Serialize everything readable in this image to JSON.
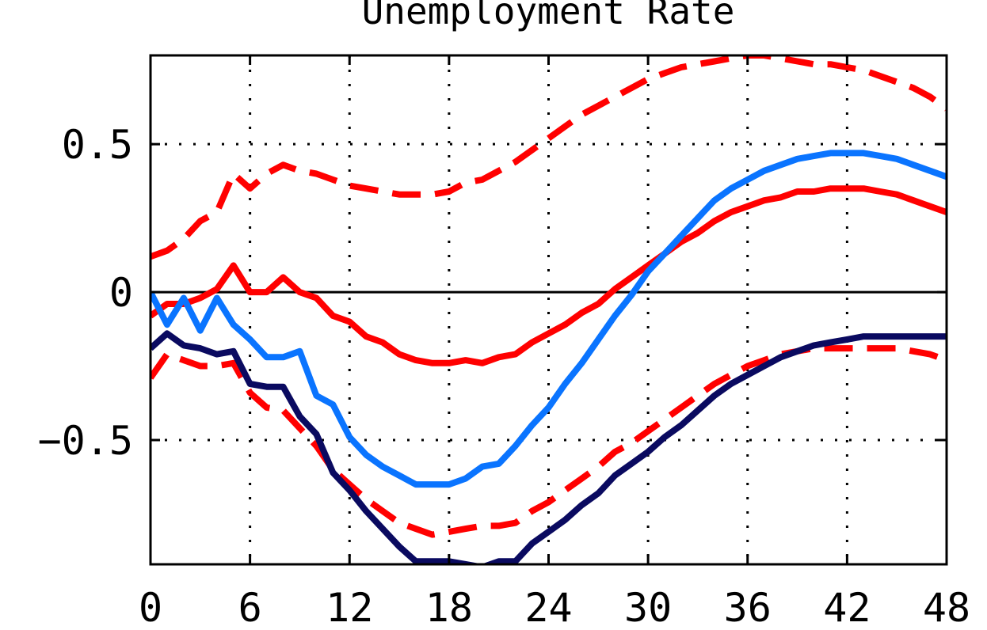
{
  "chart_data": {
    "type": "line",
    "title": "Unemployment Rate",
    "xlabel": "",
    "ylabel": "",
    "xlim": [
      0,
      48
    ],
    "ylim": [
      -0.92,
      0.8
    ],
    "x_ticks": [
      0,
      6,
      12,
      18,
      24,
      30,
      36,
      42,
      48
    ],
    "x_tick_labels": [
      "0",
      "6",
      "12",
      "18",
      "24",
      "30",
      "36",
      "42",
      "48"
    ],
    "y_ticks": [
      -0.5,
      0,
      0.5
    ],
    "y_tick_labels": [
      "−0.5",
      "0",
      "0.5"
    ],
    "grid": true,
    "zero_line": true,
    "colors": {
      "red": "#ff0000",
      "light_blue": "#0a74ff",
      "navy": "#0a0a60",
      "axes": "#000000"
    },
    "x": [
      0,
      1,
      2,
      3,
      4,
      5,
      6,
      7,
      8,
      9,
      10,
      11,
      12,
      13,
      14,
      15,
      16,
      17,
      18,
      19,
      20,
      21,
      22,
      23,
      24,
      25,
      26,
      27,
      28,
      29,
      30,
      31,
      32,
      33,
      34,
      35,
      36,
      37,
      38,
      39,
      40,
      41,
      42,
      43,
      44,
      45,
      46,
      47,
      48
    ],
    "series": [
      {
        "color": "red",
        "style": "dashed",
        "values": [
          0.12,
          0.14,
          0.18,
          0.24,
          0.27,
          0.4,
          0.35,
          0.4,
          0.43,
          0.41,
          0.4,
          0.38,
          0.36,
          0.35,
          0.34,
          0.33,
          0.33,
          0.33,
          0.34,
          0.37,
          0.38,
          0.41,
          0.44,
          0.48,
          0.52,
          0.56,
          0.6,
          0.63,
          0.66,
          0.69,
          0.72,
          0.74,
          0.76,
          0.77,
          0.78,
          0.79,
          0.8,
          0.8,
          0.79,
          0.78,
          0.77,
          0.77,
          0.76,
          0.75,
          0.73,
          0.71,
          0.69,
          0.66,
          0.62
        ]
      },
      {
        "color": "red",
        "style": "dashed",
        "values": [
          -0.29,
          -0.21,
          -0.23,
          -0.25,
          -0.25,
          -0.24,
          -0.34,
          -0.39,
          -0.4,
          -0.46,
          -0.52,
          -0.6,
          -0.65,
          -0.7,
          -0.74,
          -0.78,
          -0.8,
          -0.82,
          -0.81,
          -0.8,
          -0.79,
          -0.79,
          -0.78,
          -0.74,
          -0.71,
          -0.67,
          -0.63,
          -0.59,
          -0.54,
          -0.51,
          -0.47,
          -0.43,
          -0.39,
          -0.35,
          -0.31,
          -0.28,
          -0.25,
          -0.23,
          -0.21,
          -0.2,
          -0.19,
          -0.19,
          -0.19,
          -0.19,
          -0.19,
          -0.19,
          -0.2,
          -0.21,
          -0.23
        ]
      },
      {
        "color": "red",
        "style": "solid",
        "values": [
          -0.08,
          -0.04,
          -0.04,
          -0.02,
          0.01,
          0.09,
          0.0,
          0.0,
          0.05,
          0.0,
          -0.02,
          -0.08,
          -0.1,
          -0.15,
          -0.17,
          -0.21,
          -0.23,
          -0.24,
          -0.24,
          -0.23,
          -0.24,
          -0.22,
          -0.21,
          -0.17,
          -0.14,
          -0.11,
          -0.07,
          -0.04,
          0.01,
          0.05,
          0.09,
          0.13,
          0.17,
          0.2,
          0.24,
          0.27,
          0.29,
          0.31,
          0.32,
          0.34,
          0.34,
          0.35,
          0.35,
          0.35,
          0.34,
          0.33,
          0.31,
          0.29,
          0.27
        ]
      },
      {
        "color": "light_blue",
        "style": "solid",
        "values": [
          0.0,
          -0.11,
          -0.02,
          -0.13,
          -0.02,
          -0.11,
          -0.16,
          -0.22,
          -0.22,
          -0.2,
          -0.35,
          -0.38,
          -0.49,
          -0.55,
          -0.59,
          -0.62,
          -0.65,
          -0.65,
          -0.65,
          -0.63,
          -0.59,
          -0.58,
          -0.52,
          -0.45,
          -0.39,
          -0.31,
          -0.24,
          -0.16,
          -0.08,
          -0.01,
          0.07,
          0.13,
          0.19,
          0.25,
          0.31,
          0.35,
          0.38,
          0.41,
          0.43,
          0.45,
          0.46,
          0.47,
          0.47,
          0.47,
          0.46,
          0.45,
          0.43,
          0.41,
          0.39
        ]
      },
      {
        "color": "navy",
        "style": "solid",
        "values": [
          -0.19,
          -0.14,
          -0.18,
          -0.19,
          -0.21,
          -0.2,
          -0.31,
          -0.32,
          -0.32,
          -0.42,
          -0.48,
          -0.61,
          -0.67,
          -0.74,
          -0.8,
          -0.86,
          -0.91,
          -0.91,
          -0.91,
          -0.92,
          -0.93,
          -0.91,
          -0.91,
          -0.85,
          -0.81,
          -0.77,
          -0.72,
          -0.68,
          -0.62,
          -0.58,
          -0.54,
          -0.49,
          -0.45,
          -0.4,
          -0.35,
          -0.31,
          -0.28,
          -0.25,
          -0.22,
          -0.2,
          -0.18,
          -0.17,
          -0.16,
          -0.15,
          -0.15,
          -0.15,
          -0.15,
          -0.15,
          -0.15
        ]
      }
    ]
  }
}
